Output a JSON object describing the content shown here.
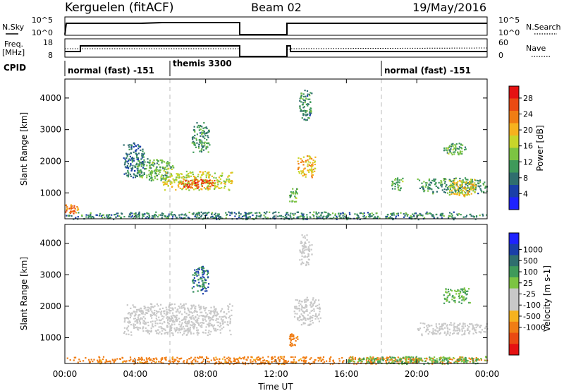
{
  "header": {
    "station": "Kerguelen (fitACF)",
    "beam": "Beam 02",
    "date": "19/May/2016"
  },
  "noise_panel": {
    "left_label": "N.Sky",
    "right_label": "N.Search",
    "ticks": [
      "10^5",
      "10^0"
    ]
  },
  "freq_panel": {
    "left_label_line1": "Freq.",
    "left_label_line2": "[MHz]",
    "left_ticks": [
      "18",
      "8"
    ],
    "right_label": "Nave",
    "right_ticks": [
      "60",
      "0"
    ]
  },
  "cpid": {
    "label": "CPID",
    "segments": [
      {
        "text": "normal (fast) -151",
        "start_hour": 0
      },
      {
        "text": "themis 3300",
        "start_hour": 6
      },
      {
        "text": "normal (fast) -151",
        "start_hour": 18
      }
    ]
  },
  "x_axis": {
    "label": "Time UT",
    "ticks": [
      "00:00",
      "04:00",
      "08:00",
      "12:00",
      "16:00",
      "20:00",
      "00:00"
    ]
  },
  "colors": {
    "power": [
      "#1e22ff",
      "#1a3fa8",
      "#2f6e6e",
      "#3f9a5a",
      "#7cc442",
      "#c8d62a",
      "#f6b21e",
      "#f07d14",
      "#ea4a12",
      "#e51212"
    ],
    "velocity": [
      "#e51212",
      "#ea4a12",
      "#f07d14",
      "#f6b21e",
      "#c8c8c8",
      "#c8c8c8",
      "#7cc442",
      "#3f9a5a",
      "#2f6e6e",
      "#1a3fa8",
      "#1e22ff"
    ]
  },
  "chart_data": [
    {
      "type": "heatmap",
      "title": "",
      "xlabel": "Time UT",
      "ylabel": "Slant Range [km]",
      "xlim": [
        0,
        24
      ],
      "ylim": [
        180,
        4600
      ],
      "yticks": [
        "1000",
        "2000",
        "3000",
        "4000"
      ],
      "colorbar": {
        "label": "Power [dB]",
        "ticks": [
          "4",
          "8",
          "12",
          "16",
          "20",
          "24",
          "28"
        ],
        "range": [
          0,
          31
        ]
      },
      "echo_regions": [
        {
          "t0": 0.0,
          "t1": 24.0,
          "r0": 180,
          "r1": 420,
          "value": 9
        },
        {
          "t0": 0.0,
          "t1": 0.8,
          "r0": 350,
          "r1": 650,
          "value": 24
        },
        {
          "t0": 3.3,
          "t1": 4.5,
          "r0": 1500,
          "r1": 2600,
          "value": 8
        },
        {
          "t0": 4.0,
          "t1": 6.2,
          "r0": 1400,
          "r1": 2100,
          "value": 12
        },
        {
          "t0": 5.5,
          "t1": 9.5,
          "r0": 1100,
          "r1": 1700,
          "value": 17
        },
        {
          "t0": 6.5,
          "t1": 8.5,
          "r0": 1150,
          "r1": 1450,
          "value": 26
        },
        {
          "t0": 7.2,
          "t1": 8.2,
          "r0": 2300,
          "r1": 3300,
          "value": 10
        },
        {
          "t0": 12.7,
          "t1": 13.2,
          "r0": 700,
          "r1": 1200,
          "value": 12
        },
        {
          "t0": 13.2,
          "t1": 14.2,
          "r0": 1500,
          "r1": 2200,
          "value": 20
        },
        {
          "t0": 13.3,
          "t1": 14.0,
          "r0": 3300,
          "r1": 4300,
          "value": 10
        },
        {
          "t0": 18.5,
          "t1": 19.2,
          "r0": 1100,
          "r1": 1500,
          "value": 12
        },
        {
          "t0": 20.0,
          "t1": 24.0,
          "r0": 1000,
          "r1": 1500,
          "value": 10
        },
        {
          "t0": 21.8,
          "t1": 23.4,
          "r0": 900,
          "r1": 1450,
          "value": 18
        },
        {
          "t0": 21.5,
          "t1": 22.8,
          "r0": 2200,
          "r1": 2600,
          "value": 12
        }
      ]
    },
    {
      "type": "heatmap",
      "title": "",
      "xlabel": "Time UT",
      "ylabel": "Slant Range [km]",
      "xlim": [
        0,
        24
      ],
      "ylim": [
        180,
        4600
      ],
      "yticks": [
        "1000",
        "2000",
        "3000",
        "4000"
      ],
      "colorbar": {
        "label": "Velocity [m s-1]",
        "ticks": [
          "1000",
          "500",
          "100",
          "25",
          "-25",
          "-100",
          "-500",
          "-1000"
        ],
        "range": [
          -1200,
          1200
        ]
      },
      "echo_regions": [
        {
          "t0": 0.0,
          "t1": 24.0,
          "r0": 180,
          "r1": 420,
          "value": -150
        },
        {
          "t0": 16.0,
          "t1": 24.0,
          "r0": 180,
          "r1": 420,
          "value": 100
        },
        {
          "t0": 3.3,
          "t1": 9.5,
          "r0": 1100,
          "r1": 2100,
          "value": 0
        },
        {
          "t0": 7.2,
          "t1": 8.2,
          "r0": 2400,
          "r1": 3300,
          "value": 500
        },
        {
          "t0": 12.7,
          "t1": 13.2,
          "r0": 700,
          "r1": 1200,
          "value": -150
        },
        {
          "t0": 13.0,
          "t1": 14.5,
          "r0": 1400,
          "r1": 2300,
          "value": 0
        },
        {
          "t0": 13.3,
          "t1": 14.0,
          "r0": 3300,
          "r1": 4300,
          "value": 0
        },
        {
          "t0": 20.0,
          "t1": 24.0,
          "r0": 1100,
          "r1": 1500,
          "value": 0
        },
        {
          "t0": 21.5,
          "t1": 23.0,
          "r0": 2100,
          "r1": 2600,
          "value": 100
        }
      ]
    }
  ]
}
